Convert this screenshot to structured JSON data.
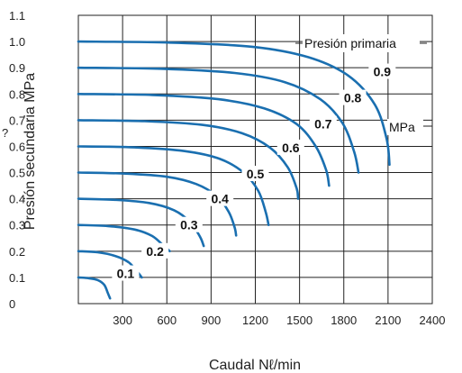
{
  "chart_data": {
    "type": "line",
    "xlabel": "Caudal Nℓ/min",
    "ylabel": "Presión secundaria MPa",
    "xlim": [
      0,
      2400
    ],
    "ylim": [
      0,
      1.1
    ],
    "xticks": [
      "300",
      "600",
      "900",
      "1200",
      "1500",
      "1800",
      "2100",
      "2400"
    ],
    "yticks": [
      "0",
      "0.1",
      "0.2",
      "0.3",
      "0.4",
      "0.5",
      "0.6",
      "0.7",
      "0.8",
      "0.9",
      "1.0",
      "1.1"
    ],
    "grid": true,
    "annotation": "Presión primaria",
    "series": [
      {
        "name": "0.1",
        "label_at": [
          320,
          0.115
        ],
        "points": [
          [
            0,
            0.1
          ],
          [
            70,
            0.097
          ],
          [
            130,
            0.09
          ],
          [
            175,
            0.072
          ],
          [
            200,
            0.04
          ],
          [
            215,
            0.02
          ]
        ]
      },
      {
        "name": "0.2",
        "label_at": [
          520,
          0.2
        ],
        "points": [
          [
            0,
            0.2
          ],
          [
            130,
            0.196
          ],
          [
            250,
            0.182
          ],
          [
            340,
            0.158
          ],
          [
            395,
            0.125
          ],
          [
            430,
            0.1
          ]
        ]
      },
      {
        "name": "0.3",
        "label_at": [
          750,
          0.3
        ],
        "points": [
          [
            0,
            0.3
          ],
          [
            200,
            0.296
          ],
          [
            380,
            0.283
          ],
          [
            500,
            0.258
          ],
          [
            580,
            0.22
          ],
          [
            620,
            0.2
          ]
        ]
      },
      {
        "name": "0.4",
        "label_at": [
          960,
          0.4
        ],
        "points": [
          [
            0,
            0.4
          ],
          [
            250,
            0.396
          ],
          [
            480,
            0.384
          ],
          [
            650,
            0.356
          ],
          [
            760,
            0.31
          ],
          [
            825,
            0.255
          ],
          [
            850,
            0.22
          ]
        ]
      },
      {
        "name": "0.5",
        "label_at": [
          1200,
          0.495
        ],
        "points": [
          [
            0,
            0.5
          ],
          [
            320,
            0.496
          ],
          [
            600,
            0.484
          ],
          [
            800,
            0.456
          ],
          [
            940,
            0.41
          ],
          [
            1020,
            0.35
          ],
          [
            1060,
            0.29
          ],
          [
            1070,
            0.26
          ]
        ]
      },
      {
        "name": "0.6",
        "label_at": [
          1440,
          0.595
        ],
        "points": [
          [
            0,
            0.6
          ],
          [
            380,
            0.596
          ],
          [
            720,
            0.582
          ],
          [
            960,
            0.552
          ],
          [
            1120,
            0.5
          ],
          [
            1220,
            0.43
          ],
          [
            1270,
            0.35
          ],
          [
            1290,
            0.3
          ]
        ]
      },
      {
        "name": "0.7",
        "label_at": [
          1660,
          0.685
        ],
        "points": [
          [
            0,
            0.7
          ],
          [
            450,
            0.696
          ],
          [
            840,
            0.682
          ],
          [
            1110,
            0.65
          ],
          [
            1300,
            0.595
          ],
          [
            1420,
            0.52
          ],
          [
            1480,
            0.44
          ],
          [
            1490,
            0.4
          ]
        ]
      },
      {
        "name": "0.8",
        "label_at": [
          1860,
          0.785
        ],
        "points": [
          [
            0,
            0.8
          ],
          [
            500,
            0.796
          ],
          [
            950,
            0.78
          ],
          [
            1260,
            0.745
          ],
          [
            1480,
            0.685
          ],
          [
            1610,
            0.6
          ],
          [
            1680,
            0.51
          ],
          [
            1700,
            0.45
          ]
        ]
      },
      {
        "name": "0.9",
        "label_at": [
          2060,
          0.885
        ],
        "points": [
          [
            0,
            0.9
          ],
          [
            560,
            0.896
          ],
          [
            1060,
            0.88
          ],
          [
            1400,
            0.845
          ],
          [
            1640,
            0.78
          ],
          [
            1790,
            0.69
          ],
          [
            1870,
            0.58
          ],
          [
            1900,
            0.5
          ]
        ]
      },
      {
        "name": "1",
        "label_at": [
          2220,
          0.98
        ],
        "points": [
          [
            0,
            1.0
          ],
          [
            620,
            0.996
          ],
          [
            1180,
            0.98
          ],
          [
            1560,
            0.94
          ],
          [
            1830,
            0.87
          ],
          [
            2010,
            0.76
          ],
          [
            2090,
            0.63
          ],
          [
            2110,
            0.53
          ]
        ]
      }
    ]
  },
  "labels": {
    "unit_mpa": "MPa",
    "stray_glyph": "?"
  }
}
